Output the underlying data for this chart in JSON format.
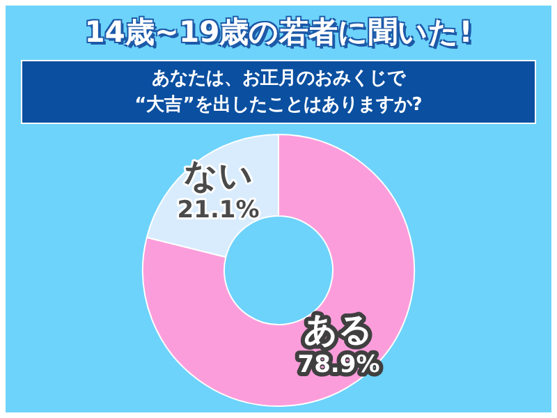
{
  "chart_data": {
    "type": "donut",
    "title": "14歳~19歳の若者に聞いた!",
    "subtitle": "あなたは、お正月のおみくじで\n“大吉”を出したことはありますか?",
    "categories": [
      "ある",
      "ない"
    ],
    "values": [
      78.9,
      21.1
    ],
    "colors": [
      "#fc9ddb",
      "#d9ecfd"
    ],
    "value_labels": [
      "78.9%",
      "21.1%"
    ],
    "legend": false
  }
}
